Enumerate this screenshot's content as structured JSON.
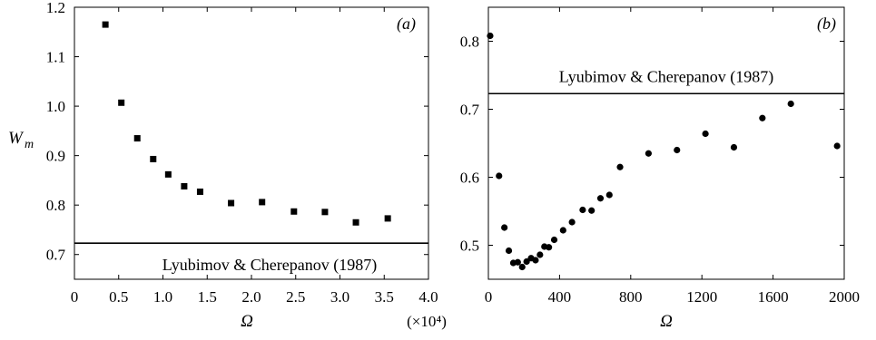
{
  "chart_data": [
    {
      "type": "scatter",
      "panel_label": "(a)",
      "xlabel": "Ω",
      "x_multiplier": "(×10⁴)",
      "ylabel_main": "W",
      "ylabel_sub": "m",
      "xlim": [
        0,
        4.0
      ],
      "ylim": [
        0.65,
        1.2
      ],
      "xticks": [
        "0",
        "0.5",
        "1.0",
        "1.5",
        "2.0",
        "2.5",
        "3.0",
        "3.5",
        "4.0"
      ],
      "yticks": [
        "0.7",
        "0.8",
        "0.9",
        "1.0",
        "1.1",
        "1.2"
      ],
      "marker": "square",
      "x": [
        0.35,
        0.53,
        0.71,
        0.89,
        1.06,
        1.24,
        1.42,
        1.77,
        2.12,
        2.48,
        2.83,
        3.18,
        3.54
      ],
      "y": [
        1.165,
        1.007,
        0.935,
        0.893,
        0.862,
        0.838,
        0.827,
        0.804,
        0.806,
        0.787,
        0.786,
        0.765,
        0.773
      ],
      "reference_line": {
        "y": 0.723,
        "label": "Lyubimov & Cherepanov (1987)",
        "label_position": "below"
      }
    },
    {
      "type": "scatter",
      "panel_label": "(b)",
      "xlabel": "Ω",
      "xlim": [
        0,
        2000
      ],
      "ylim": [
        0.45,
        0.85
      ],
      "xticks": [
        "0",
        "400",
        "800",
        "1200",
        "1600",
        "2000"
      ],
      "yticks": [
        "0.5",
        "0.6",
        "0.7",
        "0.8"
      ],
      "marker": "circle",
      "x": [
        10,
        60,
        90,
        115,
        140,
        165,
        190,
        215,
        240,
        265,
        290,
        315,
        340,
        370,
        420,
        470,
        530,
        580,
        630,
        680,
        740,
        900,
        1060,
        1220,
        1380,
        1540,
        1700,
        1960
      ],
      "y": [
        0.808,
        0.602,
        0.526,
        0.492,
        0.474,
        0.475,
        0.468,
        0.476,
        0.481,
        0.478,
        0.486,
        0.498,
        0.497,
        0.508,
        0.522,
        0.534,
        0.552,
        0.551,
        0.569,
        0.574,
        0.615,
        0.635,
        0.64,
        0.664,
        0.644,
        0.687,
        0.708,
        0.646
      ],
      "reference_line": {
        "y": 0.723,
        "label": "Lyubimov & Cherepanov (1987)",
        "label_position": "above"
      }
    }
  ]
}
